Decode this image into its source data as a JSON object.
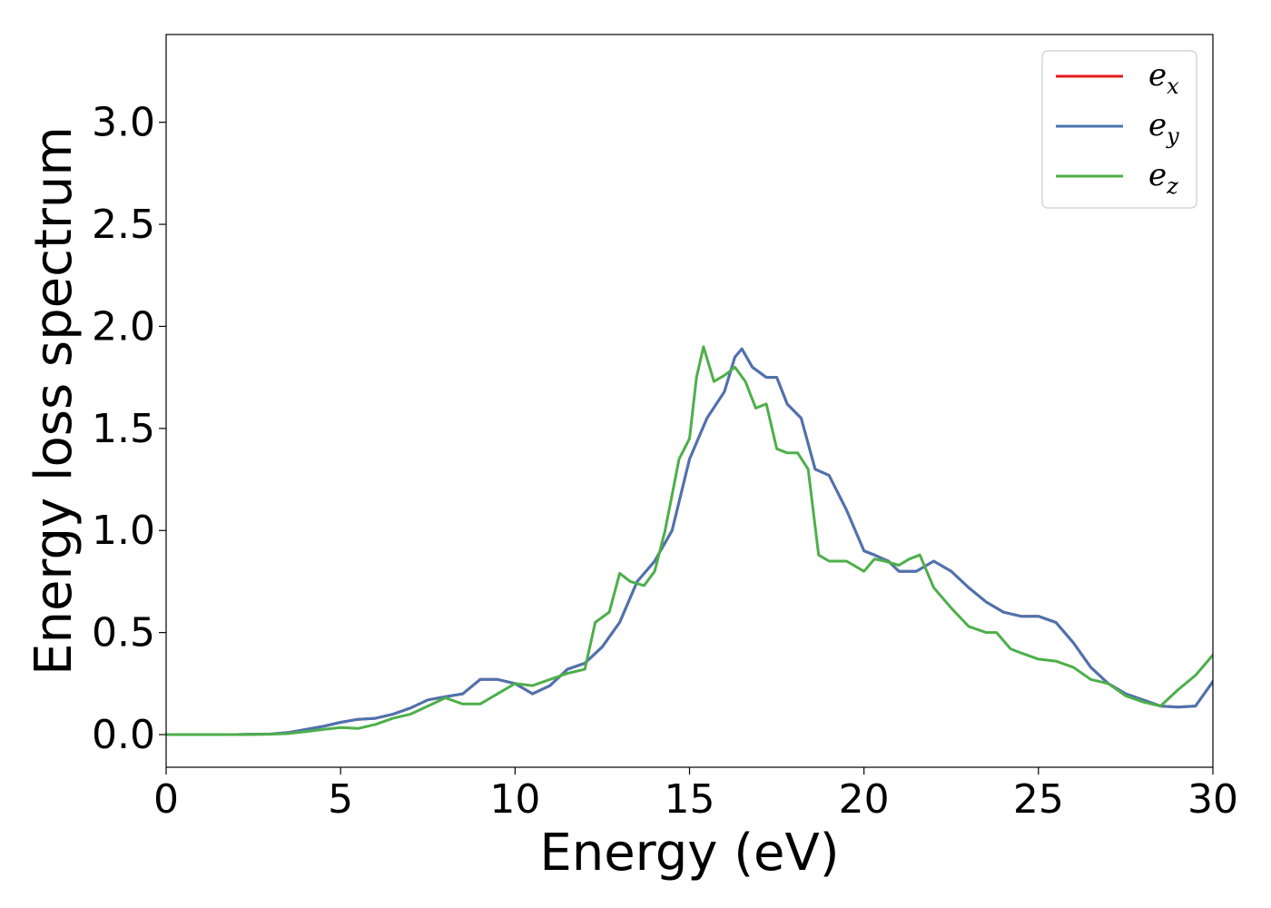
{
  "chart_data": {
    "type": "line",
    "title": "",
    "xlabel": "Energy (eV)",
    "ylabel": "Energy loss spectrum",
    "xlim": [
      0,
      30
    ],
    "ylim": [
      -0.16,
      3.43
    ],
    "xticks": [
      "0",
      "5",
      "10",
      "15",
      "20",
      "25",
      "30"
    ],
    "xtick_values": [
      0,
      5,
      10,
      15,
      20,
      25,
      30
    ],
    "yticks": [
      "0.0",
      "0.5",
      "1.0",
      "1.5",
      "2.0",
      "2.5",
      "3.0"
    ],
    "ytick_values": [
      0,
      0.5,
      1.0,
      1.5,
      2.0,
      2.5,
      3.0
    ],
    "grid": false,
    "legend_position": "top-right",
    "series": [
      {
        "name": "e_x",
        "label_base": "e",
        "label_sub": "x",
        "color": "#e41a1c",
        "x": [
          0,
          1,
          2,
          3,
          3.5,
          4,
          4.5,
          5,
          5.5,
          6,
          6.5,
          7,
          7.5,
          8,
          8.5,
          9,
          9.5,
          10,
          10.5,
          11,
          11.5,
          12,
          12.5,
          13,
          13.5,
          14,
          14.5,
          15,
          15.5,
          16,
          16.3,
          16.5,
          16.8,
          17.2,
          17.5,
          17.8,
          18.2,
          18.6,
          19,
          19.5,
          20,
          20.3,
          20.7,
          21,
          21.5,
          22,
          22.5,
          23,
          23.5,
          24,
          24.5,
          25,
          25.5,
          26,
          26.5,
          27,
          27.5,
          28,
          28.5,
          29,
          29.5,
          30
        ],
        "y": [
          0,
          0,
          0,
          0.003,
          0.01,
          0.025,
          0.04,
          0.06,
          0.075,
          0.08,
          0.1,
          0.13,
          0.17,
          0.185,
          0.2,
          0.27,
          0.27,
          0.25,
          0.2,
          0.24,
          0.32,
          0.35,
          0.43,
          0.55,
          0.75,
          0.85,
          1.0,
          1.35,
          1.55,
          1.68,
          1.85,
          1.89,
          1.8,
          1.75,
          1.75,
          1.62,
          1.55,
          1.3,
          1.27,
          1.1,
          0.9,
          0.88,
          0.85,
          0.8,
          0.8,
          0.85,
          0.8,
          0.72,
          0.65,
          0.6,
          0.58,
          0.58,
          0.55,
          0.45,
          0.33,
          0.25,
          0.2,
          0.17,
          0.14,
          0.135,
          0.14,
          0.26
        ]
      },
      {
        "name": "e_y",
        "label_base": "e",
        "label_sub": "y",
        "color": "#4a74b0",
        "x": [
          0,
          1,
          2,
          3,
          3.5,
          4,
          4.5,
          5,
          5.5,
          6,
          6.5,
          7,
          7.5,
          8,
          8.5,
          9,
          9.5,
          10,
          10.5,
          11,
          11.5,
          12,
          12.5,
          13,
          13.5,
          14,
          14.5,
          15,
          15.5,
          16,
          16.3,
          16.5,
          16.8,
          17.2,
          17.5,
          17.8,
          18.2,
          18.6,
          19,
          19.5,
          20,
          20.3,
          20.7,
          21,
          21.5,
          22,
          22.5,
          23,
          23.5,
          24,
          24.5,
          25,
          25.5,
          26,
          26.5,
          27,
          27.5,
          28,
          28.5,
          29,
          29.5,
          30
        ],
        "y": [
          0,
          0,
          0,
          0.003,
          0.01,
          0.025,
          0.04,
          0.06,
          0.075,
          0.08,
          0.1,
          0.13,
          0.17,
          0.185,
          0.2,
          0.27,
          0.27,
          0.25,
          0.2,
          0.24,
          0.32,
          0.35,
          0.43,
          0.55,
          0.75,
          0.85,
          1.0,
          1.35,
          1.55,
          1.68,
          1.85,
          1.89,
          1.8,
          1.75,
          1.75,
          1.62,
          1.55,
          1.3,
          1.27,
          1.1,
          0.9,
          0.88,
          0.85,
          0.8,
          0.8,
          0.85,
          0.8,
          0.72,
          0.65,
          0.6,
          0.58,
          0.58,
          0.55,
          0.45,
          0.33,
          0.25,
          0.2,
          0.17,
          0.14,
          0.135,
          0.14,
          0.26
        ]
      },
      {
        "name": "e_z",
        "label_base": "e",
        "label_sub": "z",
        "color": "#4daf4a",
        "x": [
          0,
          1,
          2,
          3,
          3.5,
          4,
          4.5,
          5,
          5.5,
          6,
          6.5,
          7,
          7.5,
          8,
          8.5,
          9,
          9.5,
          10,
          10.5,
          11,
          11.5,
          12,
          12.3,
          12.7,
          13,
          13.3,
          13.7,
          14,
          14.3,
          14.7,
          15,
          15.2,
          15.4,
          15.7,
          16,
          16.3,
          16.6,
          16.9,
          17.2,
          17.5,
          17.8,
          18.1,
          18.4,
          18.7,
          19,
          19.5,
          20,
          20.3,
          20.6,
          21,
          21.3,
          21.6,
          22,
          22.5,
          23,
          23.5,
          23.8,
          24.2,
          24.5,
          25,
          25.5,
          26,
          26.5,
          27,
          27.5,
          28,
          28.5,
          29,
          29.5,
          30
        ],
        "y": [
          0,
          0,
          0,
          0.002,
          0.005,
          0.015,
          0.025,
          0.035,
          0.03,
          0.05,
          0.08,
          0.1,
          0.14,
          0.18,
          0.15,
          0.15,
          0.2,
          0.25,
          0.24,
          0.27,
          0.3,
          0.32,
          0.55,
          0.6,
          0.79,
          0.75,
          0.73,
          0.8,
          1.0,
          1.35,
          1.45,
          1.75,
          1.9,
          1.73,
          1.76,
          1.8,
          1.73,
          1.6,
          1.62,
          1.4,
          1.38,
          1.38,
          1.3,
          0.88,
          0.85,
          0.85,
          0.8,
          0.86,
          0.85,
          0.83,
          0.86,
          0.88,
          0.72,
          0.62,
          0.53,
          0.5,
          0.5,
          0.42,
          0.4,
          0.37,
          0.36,
          0.33,
          0.27,
          0.25,
          0.19,
          0.16,
          0.14,
          0.22,
          0.29,
          0.39
        ]
      }
    ]
  }
}
